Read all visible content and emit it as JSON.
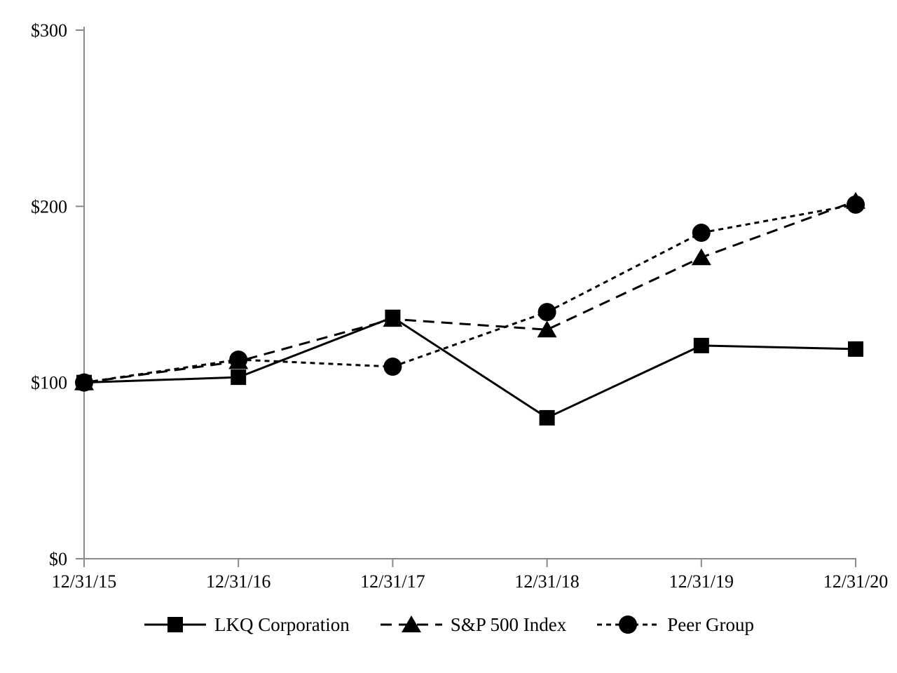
{
  "page": {
    "background_color": "#ffffff"
  },
  "chart_data": {
    "type": "line",
    "categories": [
      "12/31/15",
      "12/31/16",
      "12/31/17",
      "12/31/18",
      "12/31/19",
      "12/31/20"
    ],
    "series": [
      {
        "name": "LKQ Corporation",
        "marker": "square",
        "line_style": "solid",
        "values": [
          100,
          103,
          137,
          80,
          121,
          119
        ]
      },
      {
        "name": "S&P 500 Index",
        "marker": "triangle",
        "line_style": "long-dash",
        "values": [
          100,
          112,
          136,
          130,
          171,
          203
        ]
      },
      {
        "name": "Peer Group",
        "marker": "circle",
        "line_style": "short-dash",
        "values": [
          100,
          113,
          109,
          140,
          185,
          201
        ]
      }
    ],
    "ylim": [
      0,
      300
    ],
    "yticks": [
      0,
      100,
      200,
      300
    ],
    "ytick_labels": [
      "$0",
      "$100",
      "$200",
      "$300"
    ],
    "grid": false,
    "legend_position": "bottom",
    "colors": {
      "series": "#000000",
      "axis": "#8a8a8a"
    }
  }
}
